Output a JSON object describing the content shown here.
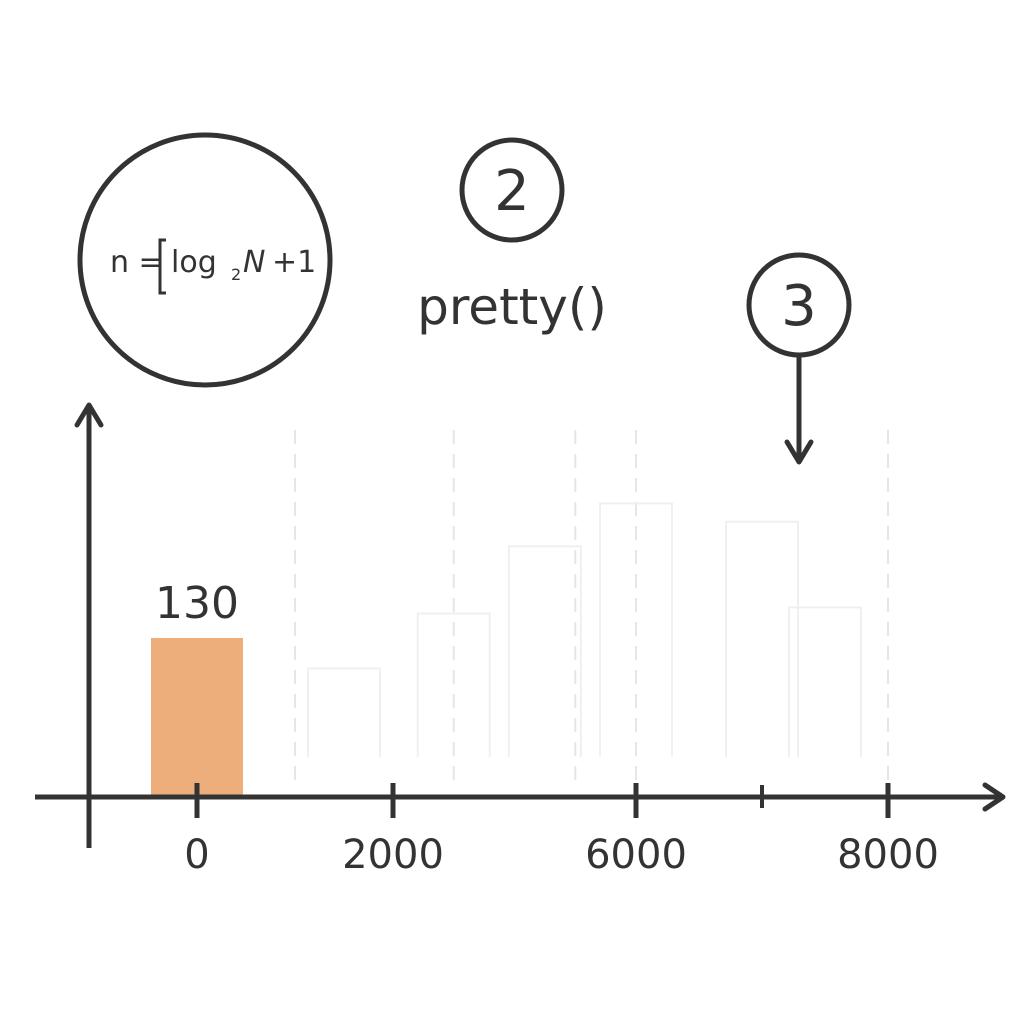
{
  "formula": {
    "lhs": "n =",
    "rhs": "log",
    "sub": "2",
    "var": "N",
    "tail": "+1"
  },
  "callouts": {
    "step_2": "2",
    "step_3": "3",
    "function_label": "pretty()"
  },
  "colors": {
    "ink": "#333333",
    "bar_fill": "#eeae7c",
    "ghost_line": "#e6e6e6"
  },
  "chart_data": {
    "type": "bar",
    "x_ticks": [
      0,
      2000,
      6000,
      8000
    ],
    "x_tick_labels": [
      "0",
      "2000",
      "6000",
      "8000"
    ],
    "highlighted_bar": {
      "x": 0,
      "value": 130,
      "label": "130"
    },
    "ghost_bars": [
      {
        "x": 1500,
        "value": 105
      },
      {
        "x": 3000,
        "value": 150
      },
      {
        "x": 4500,
        "value": 205
      },
      {
        "x": 6000,
        "value": 240
      },
      {
        "x": 7000,
        "value": 225
      },
      {
        "x": 7500,
        "value": 155
      }
    ],
    "ghost_gridlines_x": [
      1000,
      3000,
      5000,
      6000,
      8000
    ],
    "ylim": [
      0,
      300
    ],
    "grid": false
  }
}
